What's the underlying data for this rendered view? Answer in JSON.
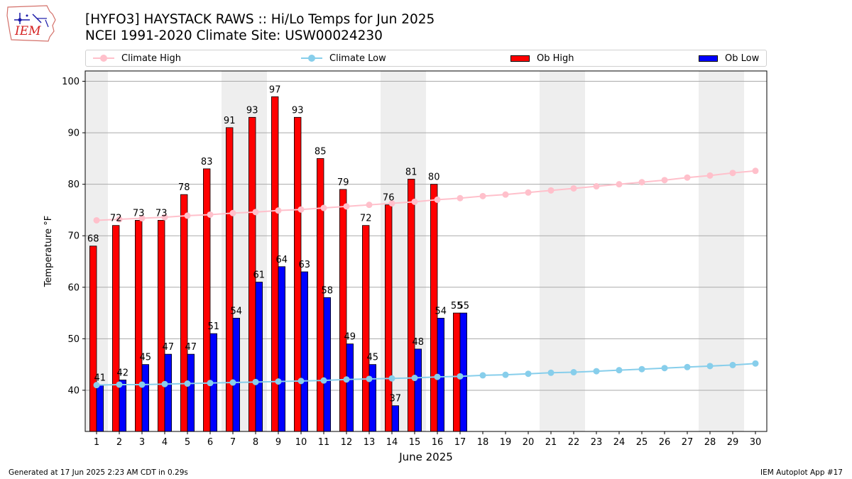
{
  "header": {
    "title_line1": "[HYFO3] HAYSTACK RAWS :: Hi/Lo Temps for Jun 2025",
    "title_line2": "NCEI 1991-2020 Climate Site: USW00024230",
    "logo_text": "IEM"
  },
  "legend": {
    "climate_high": "Climate High",
    "climate_low": "Climate Low",
    "ob_high": "Ob High",
    "ob_low": "Ob Low"
  },
  "footer": {
    "left": "Generated at 17 Jun 2025 2:23 AM CDT in 0.29s",
    "right": "IEM Autoplot App #17"
  },
  "colors": {
    "ob_high": "#ff0000",
    "ob_low": "#0000ff",
    "climate_high": "#ffc0cb",
    "climate_low": "#87ceeb",
    "weekend_shade": "#eeeeee",
    "grid": "#aaaaaa"
  },
  "chart_data": {
    "type": "bar",
    "xlabel": "June 2025",
    "ylabel": "Temperature °F",
    "ylim": [
      32,
      102
    ],
    "xlim": [
      0.5,
      30.5
    ],
    "yticks": [
      40,
      50,
      60,
      70,
      80,
      90,
      100
    ],
    "days": [
      1,
      2,
      3,
      4,
      5,
      6,
      7,
      8,
      9,
      10,
      11,
      12,
      13,
      14,
      15,
      16,
      17,
      18,
      19,
      20,
      21,
      22,
      23,
      24,
      25,
      26,
      27,
      28,
      29,
      30
    ],
    "weekend_days": [
      1,
      7,
      8,
      14,
      15,
      21,
      22,
      28,
      29
    ],
    "grid": true,
    "legend_placement": "top",
    "ob_high": [
      68,
      72,
      73,
      73,
      78,
      83,
      91,
      93,
      97,
      93,
      85,
      79,
      72,
      76,
      81,
      80,
      55
    ],
    "ob_low": [
      41,
      42,
      45,
      47,
      47,
      51,
      54,
      61,
      64,
      63,
      58,
      49,
      45,
      37,
      48,
      54,
      55
    ],
    "climate_high": [
      73.0,
      73.2,
      73.4,
      73.6,
      73.9,
      74.1,
      74.4,
      74.6,
      74.9,
      75.1,
      75.4,
      75.7,
      76.0,
      76.3,
      76.6,
      77.0,
      77.3,
      77.7,
      78.0,
      78.4,
      78.8,
      79.2,
      79.6,
      80.0,
      80.4,
      80.8,
      81.3,
      81.7,
      82.2,
      82.6
    ],
    "climate_low": [
      41.0,
      41.1,
      41.1,
      41.2,
      41.3,
      41.4,
      41.5,
      41.6,
      41.7,
      41.8,
      41.9,
      42.1,
      42.2,
      42.3,
      42.4,
      42.6,
      42.7,
      42.9,
      43.0,
      43.2,
      43.4,
      43.5,
      43.7,
      43.9,
      44.1,
      44.3,
      44.5,
      44.7,
      44.9,
      45.2
    ]
  }
}
